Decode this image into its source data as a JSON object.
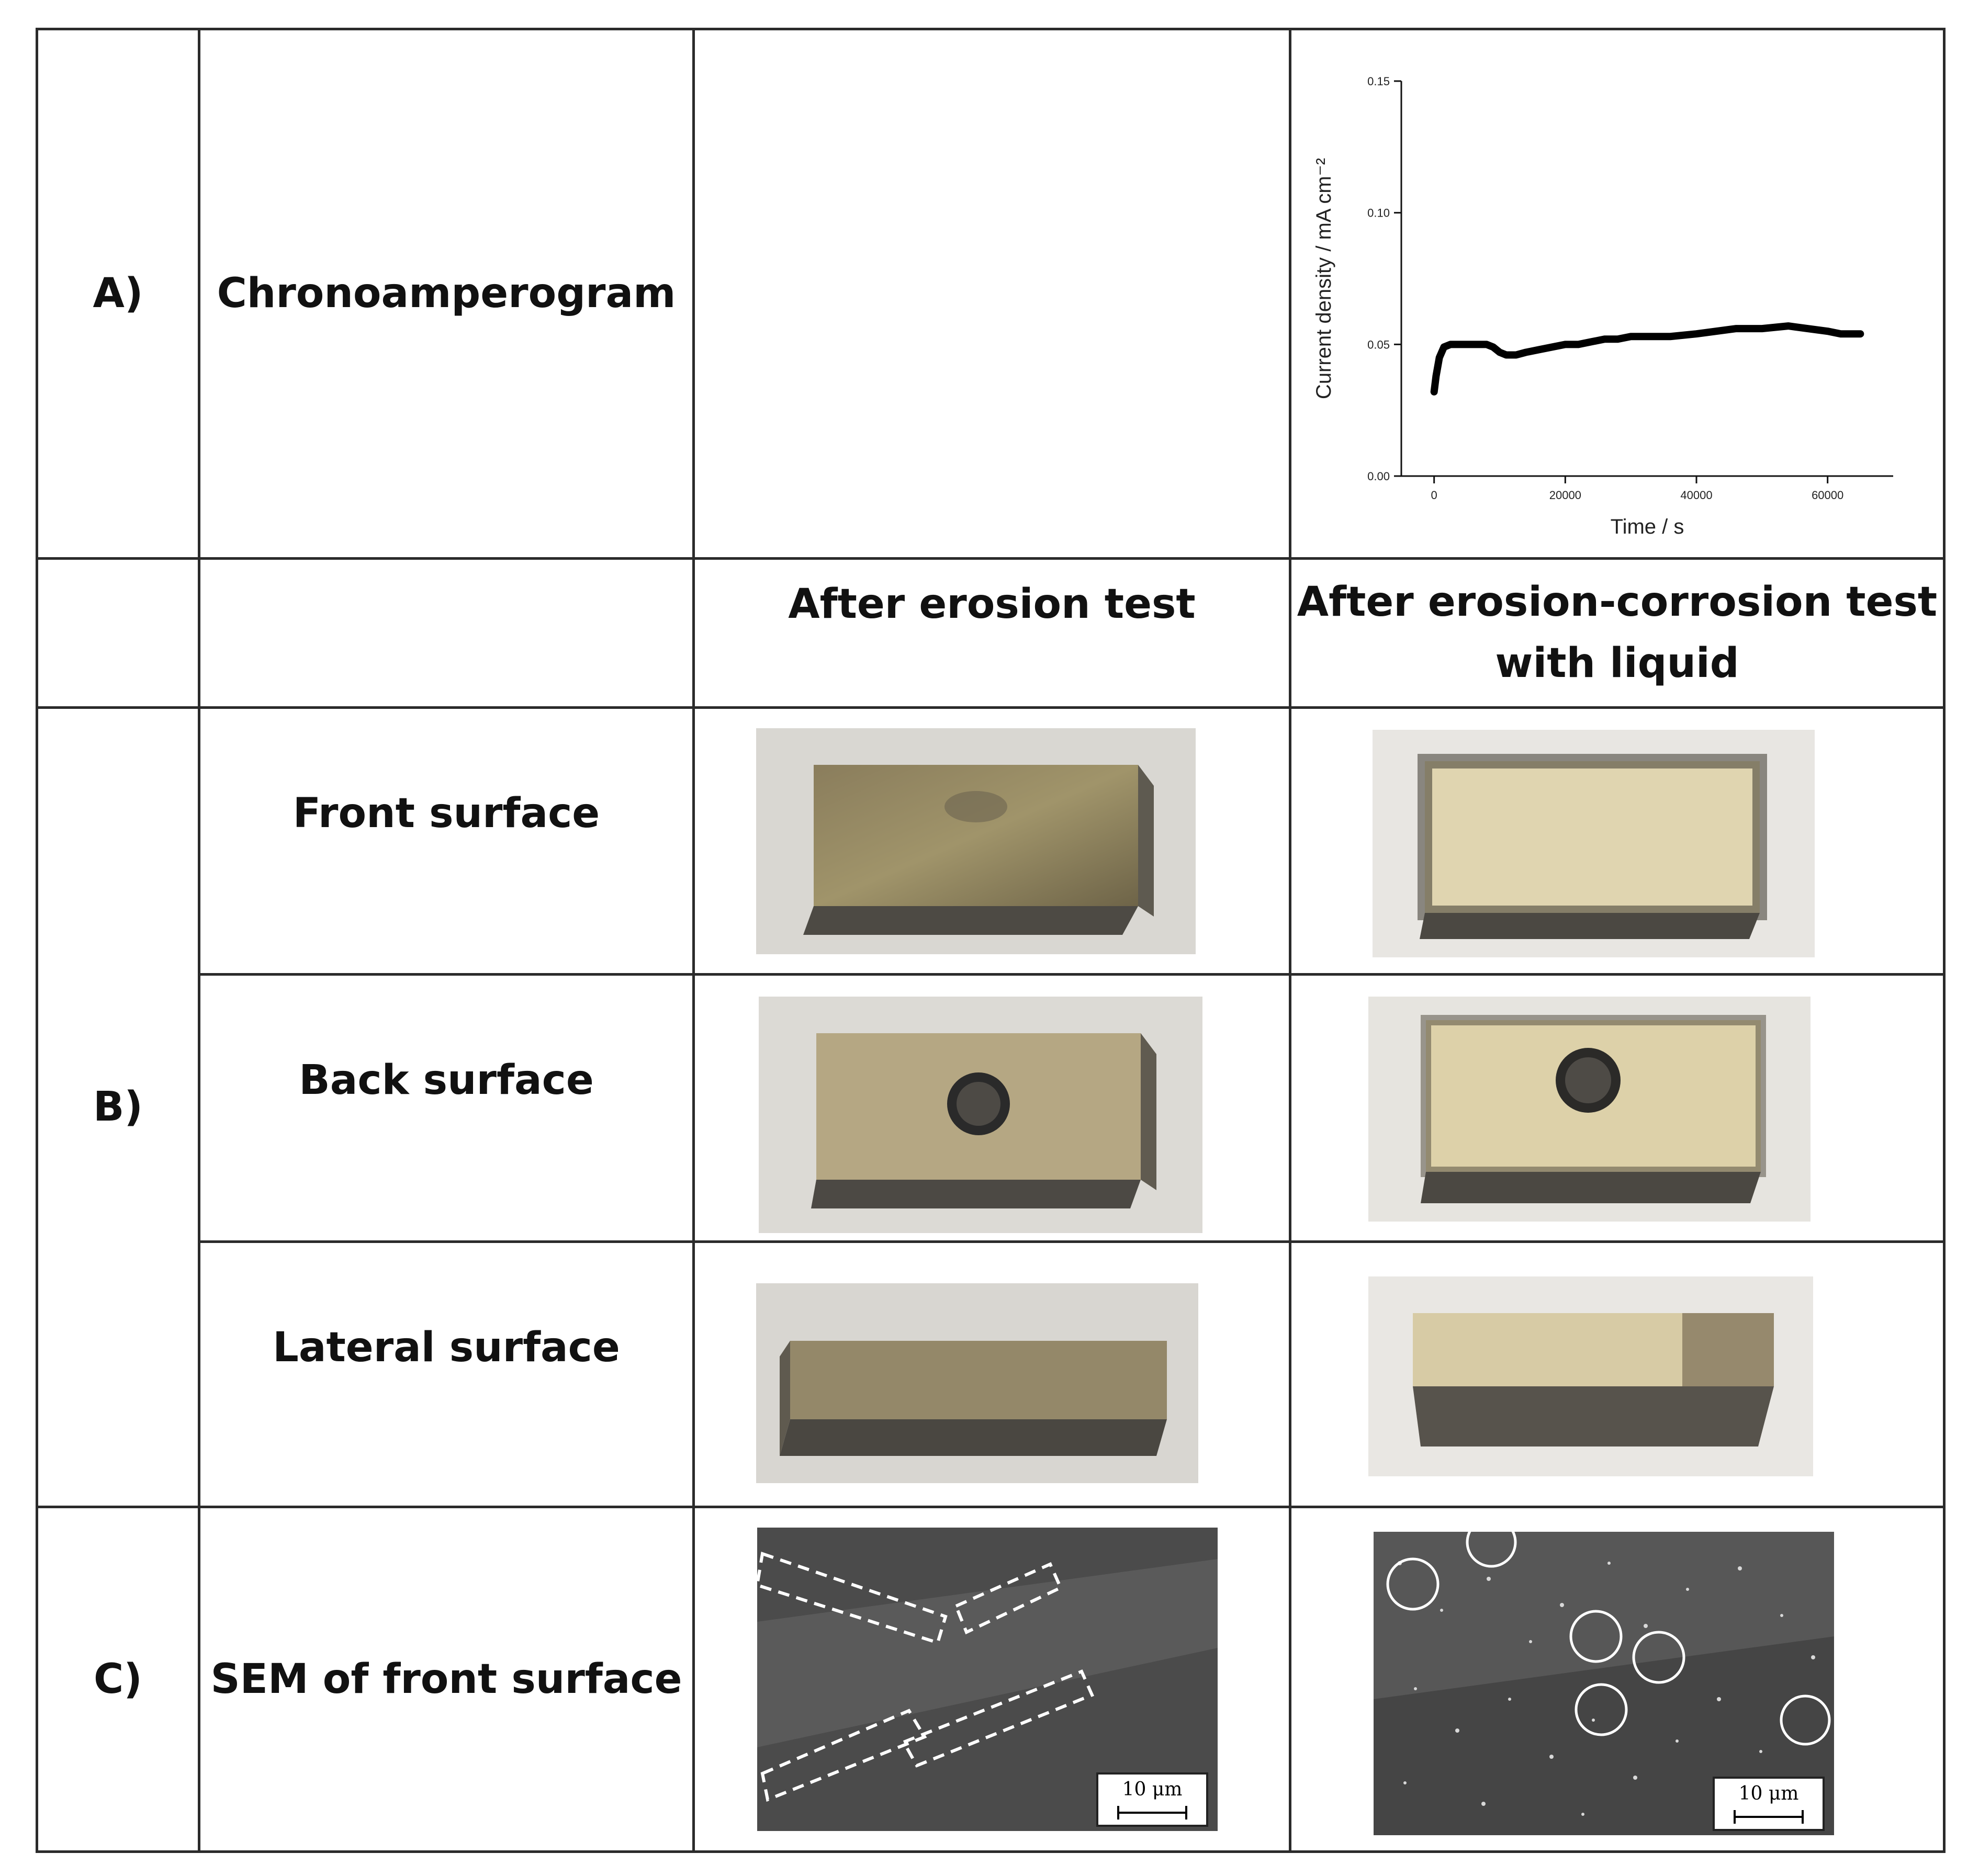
{
  "rows": {
    "a_label": "A)",
    "a_title": "Chronoamperogram",
    "b_label": "B)",
    "c_label": "C)",
    "c_title": "SEM of front surface"
  },
  "columns": {
    "erosion": "After erosion test",
    "erosion_corrosion_line1": "After erosion-corrosion test",
    "erosion_corrosion_line2": "with liquid"
  },
  "surfaces": {
    "front": "Front surface",
    "back": "Back surface",
    "lateral": "Lateral surface"
  },
  "scale_bars": {
    "left": "10 μm",
    "right": "10 μm"
  },
  "chart_data": {
    "type": "line",
    "title": "",
    "xlabel": "Time / s",
    "ylabel": "Current density / mA cm⁻²",
    "xlim": [
      -5000,
      70000
    ],
    "ylim": [
      0.0,
      0.15
    ],
    "xticks": [
      0,
      20000,
      40000,
      60000
    ],
    "yticks": [
      0.0,
      0.05,
      0.1,
      0.15
    ],
    "ytick_labels": [
      "0.00",
      "0.05",
      "0.10",
      "0.15"
    ],
    "series": [
      {
        "x": [
          0,
          300,
          800,
          1500,
          2500,
          4000,
          6000,
          8000,
          9000,
          10000,
          11000,
          12500,
          14000,
          16000,
          18000,
          20000,
          22000,
          24000,
          26000,
          28000,
          30000,
          33000,
          36000,
          40000,
          43000,
          46000,
          50000,
          54000,
          57000,
          60000,
          62000,
          65000
        ],
        "y": [
          0.032,
          0.038,
          0.045,
          0.049,
          0.05,
          0.05,
          0.05,
          0.05,
          0.049,
          0.047,
          0.046,
          0.046,
          0.047,
          0.048,
          0.049,
          0.05,
          0.05,
          0.051,
          0.052,
          0.052,
          0.053,
          0.053,
          0.053,
          0.054,
          0.055,
          0.056,
          0.056,
          0.057,
          0.056,
          0.055,
          0.054,
          0.054
        ]
      }
    ]
  }
}
